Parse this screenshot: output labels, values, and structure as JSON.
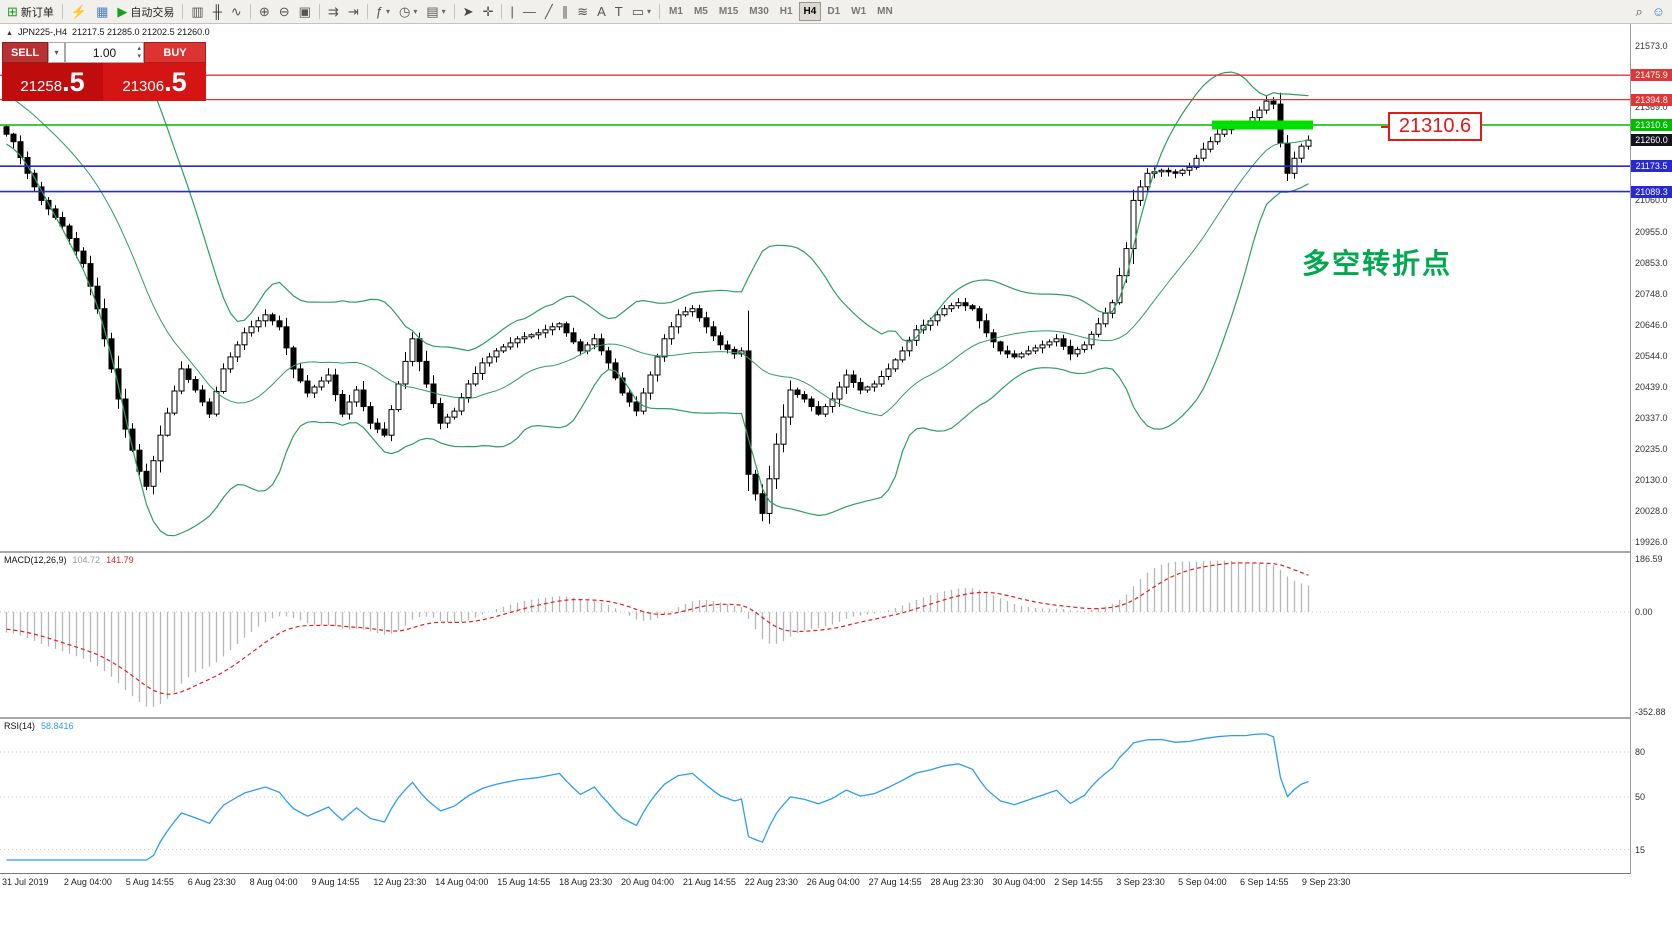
{
  "toolbar": {
    "groups": [
      {
        "items": [
          {
            "icon": "new-order-icon",
            "label": "新订单"
          }
        ]
      },
      {
        "items": [
          {
            "icon": "new-chart-icon"
          },
          {
            "icon": "profiles-icon"
          },
          {
            "icon": "autotrading-icon",
            "label": "自动交易"
          }
        ]
      },
      {
        "items": [
          {
            "icon": "bar-chart-icon"
          },
          {
            "icon": "candlestick-chart-icon"
          },
          {
            "icon": "line-chart-icon"
          }
        ]
      },
      {
        "items": [
          {
            "icon": "zoom-in-icon"
          },
          {
            "icon": "zoom-out-icon"
          },
          {
            "icon": "tile-windows-icon"
          }
        ]
      },
      {
        "items": [
          {
            "icon": "auto-scroll-icon"
          },
          {
            "icon": "chart-shift-icon"
          }
        ]
      },
      {
        "items": [
          {
            "icon": "indicators-icon",
            "dropdown": true
          },
          {
            "icon": "periods-icon",
            "dropdown": true
          },
          {
            "icon": "templates-icon",
            "dropdown": true
          }
        ]
      },
      {
        "items": [
          {
            "icon": "cursor-icon"
          },
          {
            "icon": "crosshair-icon"
          }
        ]
      },
      {
        "items": [
          {
            "icon": "vertical-line-icon"
          },
          {
            "icon": "horizontal-line-icon"
          },
          {
            "icon": "trendline-icon"
          },
          {
            "icon": "equidistant-channel-icon"
          },
          {
            "icon": "fibonacci-icon"
          },
          {
            "icon": "text-icon"
          },
          {
            "icon": "text-label-icon"
          },
          {
            "icon": "shapes-icon",
            "dropdown": true
          }
        ]
      }
    ],
    "timeframes": [
      "M1",
      "M5",
      "M15",
      "M30",
      "H1",
      "H4",
      "D1",
      "W1",
      "MN"
    ],
    "active_timeframe": "H4",
    "right_icons": [
      {
        "icon": "search-icon"
      },
      {
        "icon": "community-icon"
      }
    ]
  },
  "chart": {
    "symbol_period": "JPN225-,H4",
    "ohlc_text": "21217.5 21285.0 21202.5 21260.0"
  },
  "trade_panel": {
    "sell_label": "SELL",
    "buy_label": "BUY",
    "volume": "1.00",
    "sell_price_main": "21258",
    "sell_price_big": ".5",
    "buy_price_main": "21306",
    "buy_price_big": ".5"
  },
  "annotations": {
    "price_callout": "21310.6",
    "note_text": "多空转折点"
  },
  "macd_label": {
    "name": "MACD(12,26,9)",
    "main": "104.72",
    "signal": "141.79"
  },
  "rsi_label": {
    "name": "RSI(14)",
    "value": "58.8416"
  },
  "chart_data": {
    "type": "candlestick",
    "symbol": "JPN225-",
    "period": "H4",
    "visible_range": {
      "start": "31 Jul 2019",
      "end": "9 Sep 23:30"
    },
    "ohlc_header": {
      "open": 21217.5,
      "high": 21285.0,
      "low": 21202.5,
      "close": 21260.0
    },
    "current_price": 21260.0,
    "price_axis_ticks": [
      21573.0,
      21369.0,
      21060.0,
      20955.0,
      20853.0,
      20748.0,
      20646.0,
      20544.0,
      20439.0,
      20337.0,
      20235.0,
      20130.0,
      20028.0,
      19926.0
    ],
    "levels": [
      {
        "price": 21475.9,
        "color": "#e03636",
        "kind": "resistance"
      },
      {
        "price": 21394.8,
        "color": "#e03636",
        "kind": "resistance"
      },
      {
        "price": 21310.6,
        "color": "#00bb00",
        "kind": "key-level"
      },
      {
        "price": 21173.5,
        "color": "#2828d8",
        "kind": "support"
      },
      {
        "price": 21089.3,
        "color": "#2828d8",
        "kind": "support"
      }
    ],
    "highlight": {
      "price": 21310.6,
      "from_candle": 173,
      "to_candle": 186
    },
    "bollinger": {
      "period": 20,
      "deviation": 2
    },
    "macd": {
      "fast": 12,
      "slow": 26,
      "signal": 9,
      "current": 104.72,
      "signal_current": 141.79,
      "axis": [
        186.59,
        0,
        -352.88
      ]
    },
    "rsi": {
      "period": 14,
      "current": 58.8416,
      "axis": [
        80,
        50,
        15
      ]
    },
    "time_axis_labels": [
      "31 Jul 2019",
      "2 Aug 04:00",
      "5 Aug 14:55",
      "6 Aug 23:30",
      "8 Aug 04:00",
      "9 Aug 14:55",
      "12 Aug 23:30",
      "14 Aug 04:00",
      "15 Aug 14:55",
      "18 Aug 23:30",
      "20 Aug 04:00",
      "21 Aug 14:55",
      "22 Aug 23:30",
      "26 Aug 04:00",
      "27 Aug 14:55",
      "28 Aug 23:30",
      "30 Aug 04:00",
      "2 Sep 14:55",
      "3 Sep 23:30",
      "5 Sep 04:00",
      "6 Sep 14:55",
      "9 Sep 23:30"
    ],
    "candle_count": 187,
    "close_waypoints": [
      [
        0,
        21280
      ],
      [
        1,
        21255
      ],
      [
        3,
        21150
      ],
      [
        5,
        21060
      ],
      [
        8,
        20975
      ],
      [
        11,
        20850
      ],
      [
        13,
        20700
      ],
      [
        15,
        20500
      ],
      [
        17,
        20300
      ],
      [
        19,
        20160
      ],
      [
        20,
        20110
      ],
      [
        22,
        20280
      ],
      [
        25,
        20500
      ],
      [
        27,
        20430
      ],
      [
        29,
        20350
      ],
      [
        31,
        20500
      ],
      [
        34,
        20620
      ],
      [
        37,
        20680
      ],
      [
        39,
        20640
      ],
      [
        41,
        20500
      ],
      [
        43,
        20420
      ],
      [
        46,
        20480
      ],
      [
        48,
        20350
      ],
      [
        50,
        20430
      ],
      [
        52,
        20320
      ],
      [
        54,
        20280
      ],
      [
        56,
        20450
      ],
      [
        58,
        20600
      ],
      [
        60,
        20450
      ],
      [
        62,
        20320
      ],
      [
        64,
        20360
      ],
      [
        66,
        20450
      ],
      [
        68,
        20520
      ],
      [
        70,
        20560
      ],
      [
        73,
        20600
      ],
      [
        76,
        20620
      ],
      [
        79,
        20650
      ],
      [
        82,
        20560
      ],
      [
        84,
        20600
      ],
      [
        86,
        20520
      ],
      [
        88,
        20420
      ],
      [
        90,
        20360
      ],
      [
        92,
        20480
      ],
      [
        94,
        20600
      ],
      [
        96,
        20680
      ],
      [
        98,
        20700
      ],
      [
        100,
        20640
      ],
      [
        102,
        20580
      ],
      [
        104,
        20550
      ],
      [
        105,
        20560
      ],
      [
        106,
        20150
      ],
      [
        108,
        20020
      ],
      [
        110,
        20250
      ],
      [
        112,
        20430
      ],
      [
        114,
        20400
      ],
      [
        116,
        20350
      ],
      [
        118,
        20400
      ],
      [
        120,
        20480
      ],
      [
        122,
        20430
      ],
      [
        124,
        20450
      ],
      [
        126,
        20500
      ],
      [
        128,
        20560
      ],
      [
        130,
        20630
      ],
      [
        132,
        20660
      ],
      [
        134,
        20700
      ],
      [
        136,
        20720
      ],
      [
        138,
        20700
      ],
      [
        140,
        20620
      ],
      [
        142,
        20560
      ],
      [
        144,
        20540
      ],
      [
        146,
        20560
      ],
      [
        148,
        20580
      ],
      [
        150,
        20600
      ],
      [
        152,
        20550
      ],
      [
        154,
        20580
      ],
      [
        156,
        20650
      ],
      [
        158,
        20720
      ],
      [
        160,
        20900
      ],
      [
        161,
        21060
      ],
      [
        163,
        21150
      ],
      [
        165,
        21160
      ],
      [
        167,
        21150
      ],
      [
        169,
        21170
      ],
      [
        171,
        21230
      ],
      [
        173,
        21280
      ],
      [
        175,
        21310
      ],
      [
        177,
        21310
      ],
      [
        179,
        21360
      ],
      [
        180,
        21390
      ],
      [
        181,
        21380
      ],
      [
        182,
        21250
      ],
      [
        183,
        21150
      ],
      [
        184,
        21200
      ],
      [
        185,
        21240
      ],
      [
        186,
        21260
      ]
    ]
  }
}
